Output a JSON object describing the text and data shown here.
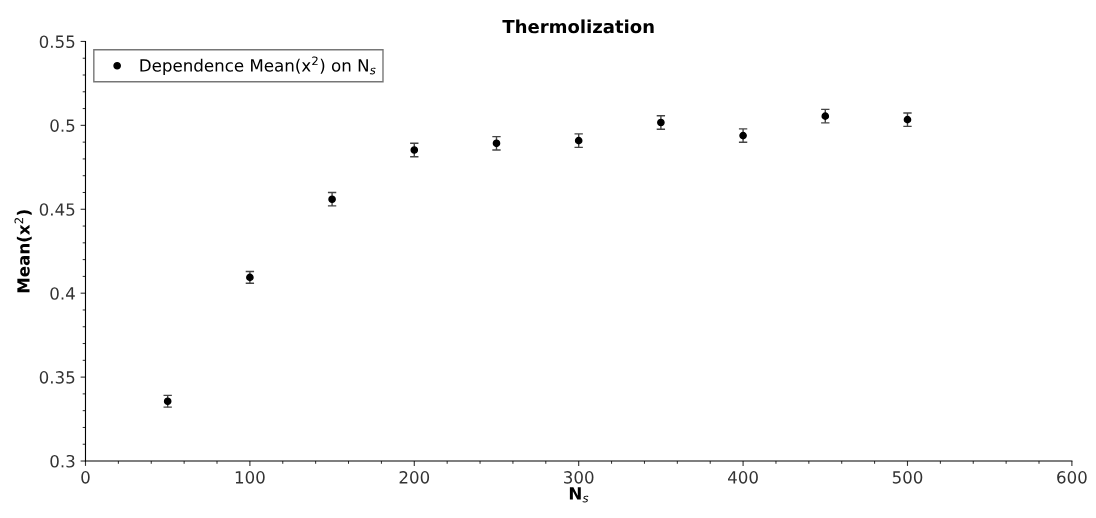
{
  "chart_data": {
    "type": "scatter",
    "title": "Thermolization",
    "xlabel": "N$_{s}$",
    "ylabel": "Mean(x$^{2}$)",
    "x": [
      50,
      100,
      150,
      200,
      250,
      300,
      350,
      400,
      450,
      500
    ],
    "series": [
      {
        "name": "Dependence Mean(x$^{2}$) on N$_{s}$",
        "color": "#000000",
        "values": [
          0.3356,
          0.4094,
          0.456,
          0.4853,
          0.4893,
          0.4909,
          0.5017,
          0.4939,
          0.5055,
          0.5034
        ],
        "errors": [
          0.0035,
          0.0035,
          0.004,
          0.004,
          0.004,
          0.004,
          0.004,
          0.004,
          0.004,
          0.004
        ]
      }
    ],
    "xlim": [
      0,
      600
    ],
    "xticks": [
      0,
      100,
      200,
      300,
      400,
      500,
      600
    ],
    "ylim": [
      0.3,
      0.55
    ],
    "yticks": [
      0.3,
      0.35,
      0.4,
      0.45,
      0.5,
      0.55
    ],
    "marker": "circle",
    "grid": false,
    "legend": "top left"
  }
}
